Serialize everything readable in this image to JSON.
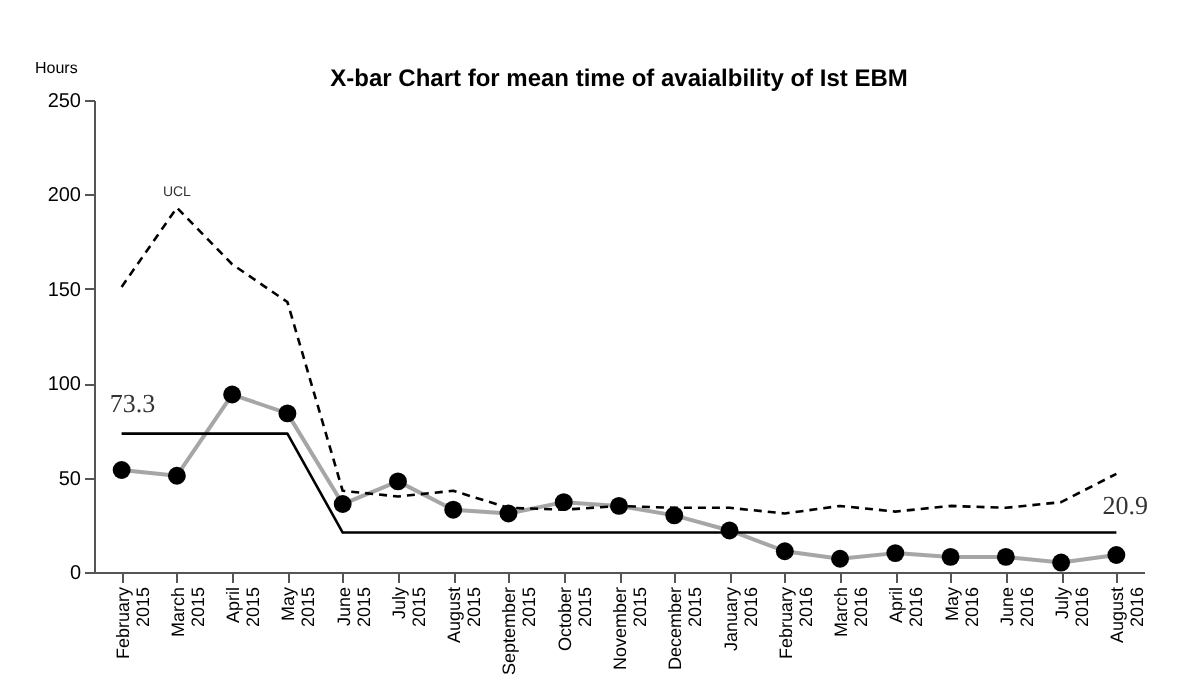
{
  "chart_data": {
    "type": "line",
    "title": "X-bar Chart for mean time of avaialbility of Ist EBM",
    "ylabel": "Hours",
    "categories": [
      "February 2015",
      "March 2015",
      "April 2015",
      "May 2015",
      "June 2015",
      "July 2015",
      "August 2015",
      "September 2015",
      "October 2015",
      "November 2015",
      "December 2015",
      "January 2016",
      "February 2016",
      "March 2016",
      "April 2016",
      "May 2016",
      "June 2016",
      "July 2016",
      "August 2016"
    ],
    "series": [
      {
        "color": "#a6a6a6",
        "marker": "circle",
        "line_style": "solid",
        "values": [
          54,
          51,
          94,
          84,
          36,
          48,
          33,
          31,
          37,
          35,
          30,
          22,
          11,
          7,
          10,
          8,
          8,
          5,
          9
        ]
      },
      {
        "color": "#000000",
        "marker": "none",
        "line_style": "dashed",
        "values": [
          151,
          193,
          163,
          143,
          43,
          40,
          43,
          34,
          33,
          35,
          34,
          34,
          31,
          35,
          32,
          35,
          34,
          37,
          52
        ]
      },
      {
        "color": "#000000",
        "marker": "none",
        "line_style": "solid",
        "values": [
          73.3,
          73.3,
          73.3,
          73.3,
          20.9,
          20.9,
          20.9,
          20.9,
          20.9,
          20.9,
          20.9,
          20.9,
          20.9,
          20.9,
          20.9,
          20.9,
          20.9,
          20.9,
          20.9
        ]
      }
    ],
    "annotations": [
      {
        "text": "UCL",
        "x": "March 2015",
        "y": 193
      },
      {
        "text": "73.3",
        "x": "February 2015",
        "y": 73.3
      },
      "20.9"
    ],
    "ylim": [
      0,
      250
    ],
    "yticks": [
      0,
      50,
      100,
      150,
      200,
      250
    ]
  }
}
